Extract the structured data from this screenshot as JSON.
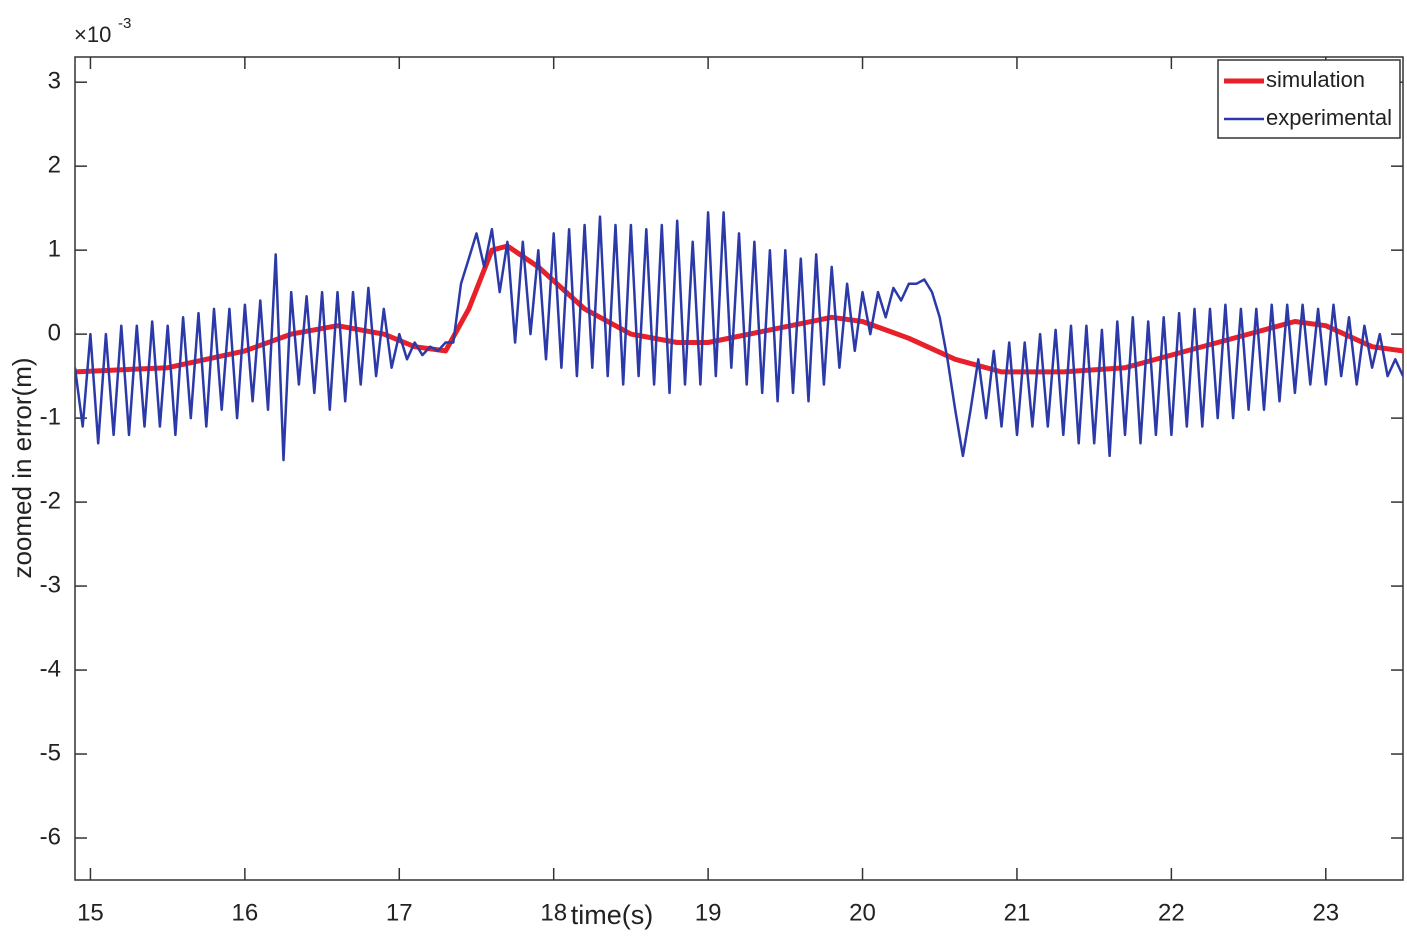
{
  "chart_data": {
    "type": "line",
    "x_label": "time(s)",
    "y_label": "zoomed in error(m)",
    "y_exponent_label": {
      "base": "×10",
      "exponent": "-3"
    },
    "xlim": [
      14.9,
      23.5
    ],
    "ylim": [
      -6.5,
      3.3
    ],
    "xticks": [
      15,
      16,
      17,
      18,
      19,
      20,
      21,
      22,
      23
    ],
    "yticks": [
      3,
      2,
      1,
      0,
      -1,
      -2,
      -3,
      -4,
      -5,
      -6
    ],
    "legend": "upper right",
    "series": [
      {
        "name": "simulation",
        "color": "#e8202a",
        "x": [
          14.9,
          15.5,
          16,
          16.3,
          16.6,
          16.9,
          17.1,
          17.3,
          17.45,
          17.6,
          17.7,
          17.9,
          18.2,
          18.5,
          18.8,
          19,
          19.4,
          19.8,
          20.0,
          20.3,
          20.6,
          20.9,
          21.3,
          21.7,
          22.1,
          22.5,
          22.8,
          23.0,
          23.3,
          23.5
        ],
        "values": [
          -0.45,
          -0.4,
          -0.2,
          0.0,
          0.1,
          0.0,
          -0.15,
          -0.2,
          0.3,
          1.0,
          1.05,
          0.8,
          0.3,
          0.0,
          -0.1,
          -0.1,
          0.05,
          0.2,
          0.15,
          -0.05,
          -0.3,
          -0.45,
          -0.45,
          -0.4,
          -0.2,
          0.0,
          0.15,
          0.1,
          -0.15,
          -0.2
        ]
      },
      {
        "name": "experimental",
        "color": "#2b3aa8",
        "x": [
          14.9,
          14.95,
          15.0,
          15.05,
          15.1,
          15.15,
          15.2,
          15.25,
          15.3,
          15.35,
          15.4,
          15.45,
          15.5,
          15.55,
          15.6,
          15.65,
          15.7,
          15.75,
          15.8,
          15.85,
          15.9,
          15.95,
          16.0,
          16.05,
          16.1,
          16.15,
          16.2,
          16.25,
          16.3,
          16.35,
          16.4,
          16.45,
          16.5,
          16.55,
          16.6,
          16.65,
          16.7,
          16.75,
          16.8,
          16.85,
          16.9,
          16.95,
          17.0,
          17.05,
          17.1,
          17.15,
          17.2,
          17.25,
          17.3,
          17.35,
          17.4,
          17.45,
          17.5,
          17.55,
          17.6,
          17.65,
          17.7,
          17.75,
          17.8,
          17.85,
          17.9,
          17.95,
          18.0,
          18.05,
          18.1,
          18.15,
          18.2,
          18.25,
          18.3,
          18.35,
          18.4,
          18.45,
          18.5,
          18.55,
          18.6,
          18.65,
          18.7,
          18.75,
          18.8,
          18.85,
          18.9,
          18.95,
          19.0,
          19.05,
          19.1,
          19.15,
          19.2,
          19.25,
          19.3,
          19.35,
          19.4,
          19.45,
          19.5,
          19.55,
          19.6,
          19.65,
          19.7,
          19.75,
          19.8,
          19.85,
          19.9,
          19.95,
          20.0,
          20.05,
          20.1,
          20.15,
          20.2,
          20.25,
          20.3,
          20.35,
          20.4,
          20.45,
          20.5,
          20.55,
          20.6,
          20.65,
          20.7,
          20.75,
          20.8,
          20.85,
          20.9,
          20.95,
          21.0,
          21.05,
          21.1,
          21.15,
          21.2,
          21.25,
          21.3,
          21.35,
          21.4,
          21.45,
          21.5,
          21.55,
          21.6,
          21.65,
          21.7,
          21.75,
          21.8,
          21.85,
          21.9,
          21.95,
          22.0,
          22.05,
          22.1,
          22.15,
          22.2,
          22.25,
          22.3,
          22.35,
          22.4,
          22.45,
          22.5,
          22.55,
          22.6,
          22.65,
          22.7,
          22.75,
          22.8,
          22.85,
          22.9,
          22.95,
          23.0,
          23.05,
          23.1,
          23.15,
          23.2,
          23.25,
          23.3,
          23.35,
          23.4,
          23.45,
          23.5
        ],
        "values": [
          -0.4,
          -1.1,
          0.0,
          -1.3,
          0.0,
          -1.2,
          0.1,
          -1.2,
          0.1,
          -1.1,
          0.15,
          -1.1,
          0.1,
          -1.2,
          0.2,
          -1.0,
          0.25,
          -1.1,
          0.3,
          -0.9,
          0.3,
          -1.0,
          0.35,
          -0.8,
          0.4,
          -0.9,
          0.95,
          -1.5,
          0.5,
          -0.6,
          0.45,
          -0.7,
          0.5,
          -0.9,
          0.5,
          -0.8,
          0.5,
          -0.6,
          0.55,
          -0.5,
          0.3,
          -0.4,
          0.0,
          -0.3,
          -0.1,
          -0.25,
          -0.15,
          -0.2,
          -0.1,
          -0.1,
          0.6,
          0.9,
          1.2,
          0.8,
          1.25,
          0.5,
          1.1,
          -0.1,
          1.1,
          0.0,
          1.0,
          -0.3,
          1.2,
          -0.4,
          1.25,
          -0.5,
          1.3,
          -0.4,
          1.4,
          -0.5,
          1.3,
          -0.6,
          1.3,
          -0.5,
          1.25,
          -0.6,
          1.3,
          -0.7,
          1.35,
          -0.6,
          1.1,
          -0.6,
          1.45,
          -0.5,
          1.45,
          -0.4,
          1.2,
          -0.6,
          1.1,
          -0.7,
          1.0,
          -0.8,
          1.0,
          -0.7,
          0.9,
          -0.8,
          0.95,
          -0.6,
          0.8,
          -0.4,
          0.6,
          -0.2,
          0.5,
          0.0,
          0.5,
          0.2,
          0.55,
          0.4,
          0.6,
          0.6,
          0.65,
          0.5,
          0.2,
          -0.3,
          -0.9,
          -1.45,
          -0.9,
          -0.3,
          -1.0,
          -0.2,
          -1.1,
          -0.1,
          -1.2,
          -0.1,
          -1.1,
          0.0,
          -1.1,
          0.05,
          -1.2,
          0.1,
          -1.3,
          0.1,
          -1.3,
          0.05,
          -1.45,
          0.15,
          -1.2,
          0.2,
          -1.3,
          0.15,
          -1.2,
          0.2,
          -1.2,
          0.25,
          -1.1,
          0.3,
          -1.1,
          0.3,
          -1.0,
          0.35,
          -1.0,
          0.3,
          -0.9,
          0.3,
          -0.9,
          0.35,
          -0.8,
          0.35,
          -0.7,
          0.35,
          -0.6,
          0.3,
          -0.6,
          0.35,
          -0.5,
          0.2,
          -0.6,
          0.1,
          -0.4,
          0.0,
          -0.5,
          -0.3,
          -0.5
        ]
      }
    ]
  }
}
